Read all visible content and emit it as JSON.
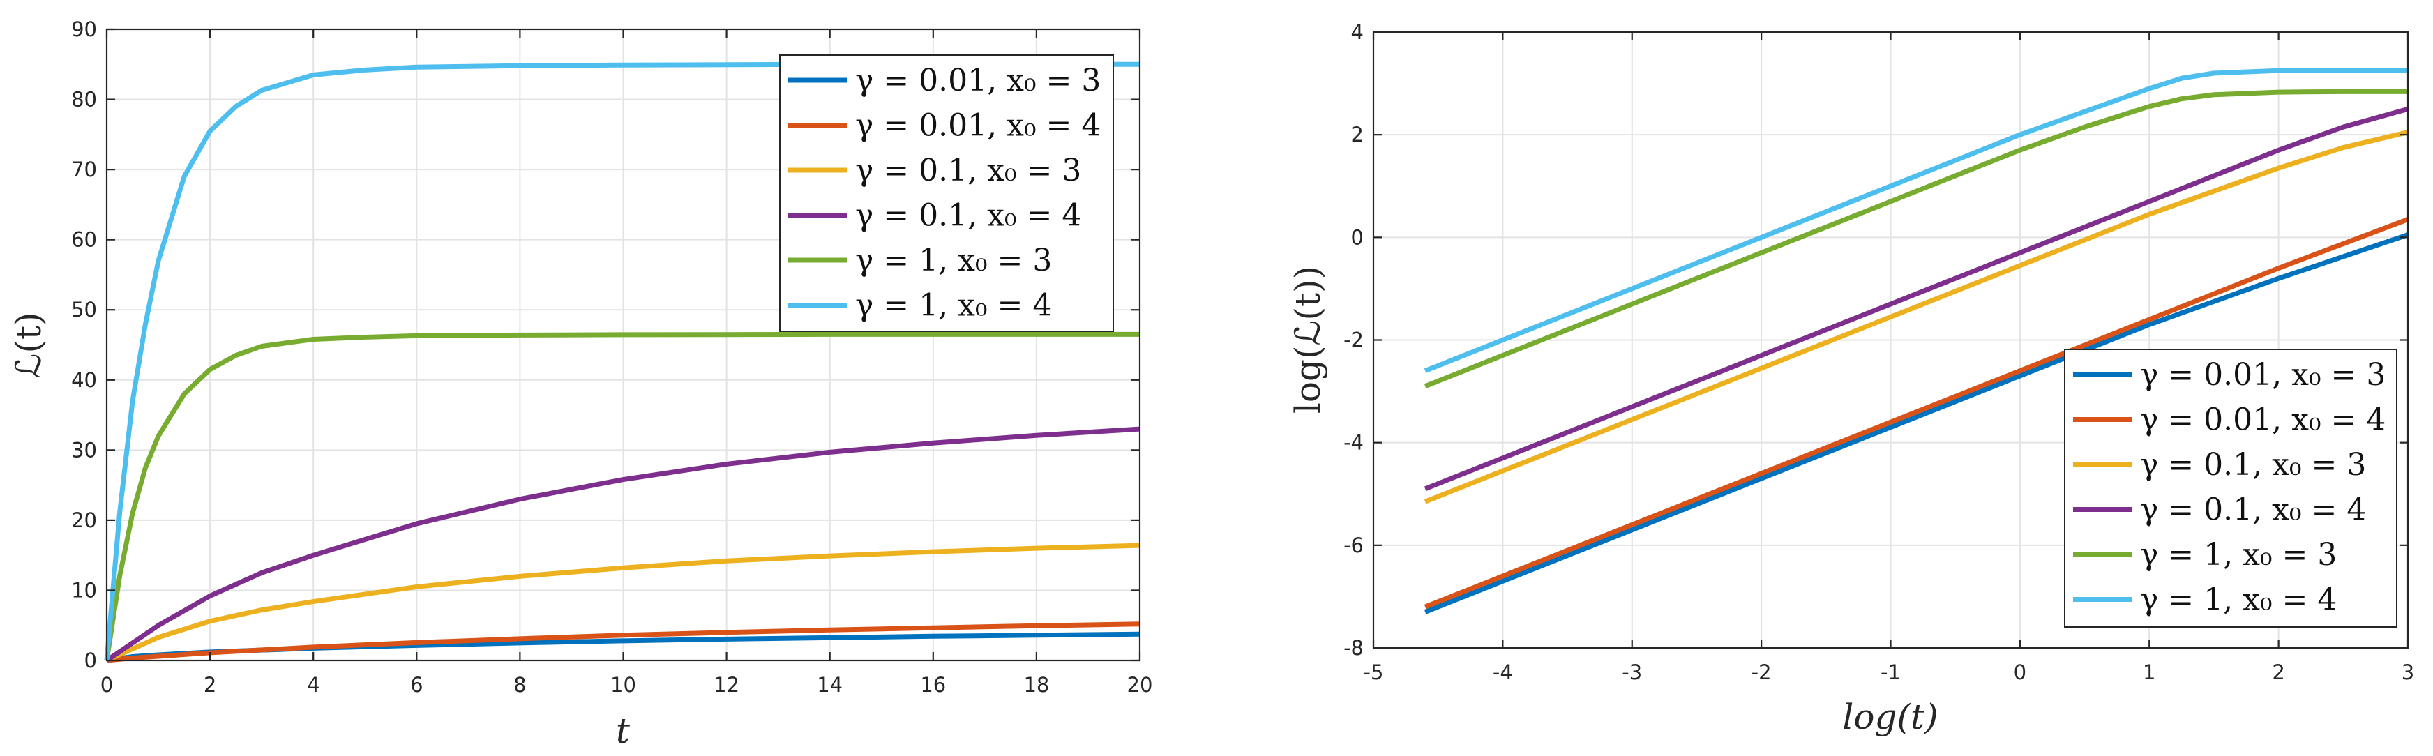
{
  "colors": {
    "blue": "#0072BD",
    "orange": "#D95319",
    "yellow": "#EDB120",
    "purple": "#7E2F8E",
    "green": "#77AC30",
    "cyan": "#4DBEEE"
  },
  "chart_data": [
    {
      "type": "line",
      "title": "",
      "xlabel": "t",
      "ylabel": "ℒ(t)",
      "xlim": [
        0,
        20
      ],
      "ylim": [
        0,
        90
      ],
      "xticks": [
        0,
        2,
        4,
        6,
        8,
        10,
        12,
        14,
        16,
        18,
        20
      ],
      "yticks": [
        0,
        10,
        20,
        30,
        40,
        50,
        60,
        70,
        80,
        90
      ],
      "grid": true,
      "legend_position": "top-right",
      "series": [
        {
          "name": "γ = 0.01, x₀ = 3",
          "color": "#0072BD",
          "x": [
            0,
            0.5,
            1,
            2,
            4,
            6,
            8,
            10,
            12,
            14,
            16,
            18,
            20
          ],
          "y": [
            0,
            0.55,
            0.8,
            1.2,
            1.75,
            2.15,
            2.5,
            2.8,
            3.05,
            3.25,
            3.45,
            3.6,
            3.75
          ]
        },
        {
          "name": "γ = 0.01, x₀ = 4",
          "color": "#D95319",
          "x": [
            0,
            0.5,
            1,
            2,
            4,
            6,
            8,
            10,
            12,
            14,
            16,
            18,
            20
          ],
          "y": [
            0,
            0.35,
            0.6,
            1.1,
            1.9,
            2.55,
            3.1,
            3.6,
            4.0,
            4.35,
            4.65,
            4.95,
            5.2
          ]
        },
        {
          "name": "γ = 0.1, x₀ = 3",
          "color": "#EDB120",
          "x": [
            0,
            1,
            2,
            3,
            4,
            6,
            8,
            10,
            12,
            14,
            16,
            18,
            20
          ],
          "y": [
            0,
            3.3,
            5.6,
            7.2,
            8.4,
            10.5,
            12.0,
            13.2,
            14.2,
            14.9,
            15.5,
            16.0,
            16.4
          ]
        },
        {
          "name": "γ = 0.1, x₀ = 4",
          "color": "#7E2F8E",
          "x": [
            0,
            1,
            2,
            3,
            4,
            6,
            8,
            10,
            12,
            14,
            16,
            18,
            20
          ],
          "y": [
            0,
            5.0,
            9.2,
            12.5,
            15.0,
            19.5,
            23.0,
            25.8,
            28.0,
            29.7,
            31.0,
            32.1,
            33.0
          ]
        },
        {
          "name": "γ = 1, x₀ = 3",
          "color": "#77AC30",
          "x": [
            0,
            0.25,
            0.5,
            0.75,
            1,
            1.5,
            2,
            2.5,
            3,
            4,
            5,
            6,
            8,
            10,
            14,
            20
          ],
          "y": [
            0,
            12,
            21,
            27.5,
            32,
            38,
            41.5,
            43.5,
            44.8,
            45.8,
            46.1,
            46.3,
            46.4,
            46.45,
            46.5,
            46.5
          ]
        },
        {
          "name": "γ = 1, x₀ = 4",
          "color": "#4DBEEE",
          "x": [
            0,
            0.25,
            0.5,
            0.75,
            1,
            1.5,
            2,
            2.5,
            3,
            4,
            5,
            6,
            8,
            10,
            14,
            20
          ],
          "y": [
            0,
            21,
            37,
            48,
            57,
            69,
            75.5,
            79,
            81.3,
            83.5,
            84.2,
            84.6,
            84.8,
            84.9,
            85,
            85
          ]
        }
      ]
    },
    {
      "type": "line",
      "title": "",
      "xlabel": "log(t)",
      "ylabel": "log(ℒ(t))",
      "xlim": [
        -5,
        3
      ],
      "ylim": [
        -8,
        4
      ],
      "xticks": [
        -5,
        -4,
        -3,
        -2,
        -1,
        0,
        1,
        2,
        3
      ],
      "yticks": [
        -8,
        -6,
        -4,
        -2,
        0,
        2,
        4
      ],
      "grid": true,
      "legend_position": "bottom-right",
      "series": [
        {
          "name": "γ = 0.01, x₀ = 3",
          "color": "#0072BD",
          "x": [
            -4.6,
            -2,
            0,
            1,
            2,
            3
          ],
          "y": [
            -7.3,
            -4.7,
            -2.7,
            -1.7,
            -0.8,
            0.05
          ]
        },
        {
          "name": "γ = 0.01, x₀ = 4",
          "color": "#D95319",
          "x": [
            -4.6,
            -2,
            0,
            1,
            2,
            3
          ],
          "y": [
            -7.2,
            -4.6,
            -2.6,
            -1.6,
            -0.6,
            0.35
          ]
        },
        {
          "name": "γ = 0.1, x₀ = 3",
          "color": "#EDB120",
          "x": [
            -4.6,
            -2,
            0,
            1,
            2,
            2.5,
            3
          ],
          "y": [
            -5.15,
            -2.55,
            -0.55,
            0.45,
            1.35,
            1.75,
            2.05
          ]
        },
        {
          "name": "γ = 0.1, x₀ = 4",
          "color": "#7E2F8E",
          "x": [
            -4.6,
            -2,
            0,
            1,
            2,
            2.5,
            3
          ],
          "y": [
            -4.9,
            -2.3,
            -0.3,
            0.7,
            1.7,
            2.15,
            2.5
          ]
        },
        {
          "name": "γ = 1, x₀ = 3",
          "color": "#77AC30",
          "x": [
            -4.6,
            -2,
            0,
            0.5,
            1,
            1.25,
            1.5,
            2,
            2.5,
            3
          ],
          "y": [
            -2.9,
            -0.3,
            1.7,
            2.15,
            2.55,
            2.7,
            2.78,
            2.83,
            2.84,
            2.84
          ]
        },
        {
          "name": "γ = 1, x₀ = 4",
          "color": "#4DBEEE",
          "x": [
            -4.6,
            -2,
            0,
            0.5,
            1,
            1.25,
            1.5,
            2,
            2.5,
            3
          ],
          "y": [
            -2.6,
            0.0,
            2.0,
            2.45,
            2.9,
            3.1,
            3.2,
            3.25,
            3.25,
            3.25
          ]
        }
      ]
    }
  ]
}
